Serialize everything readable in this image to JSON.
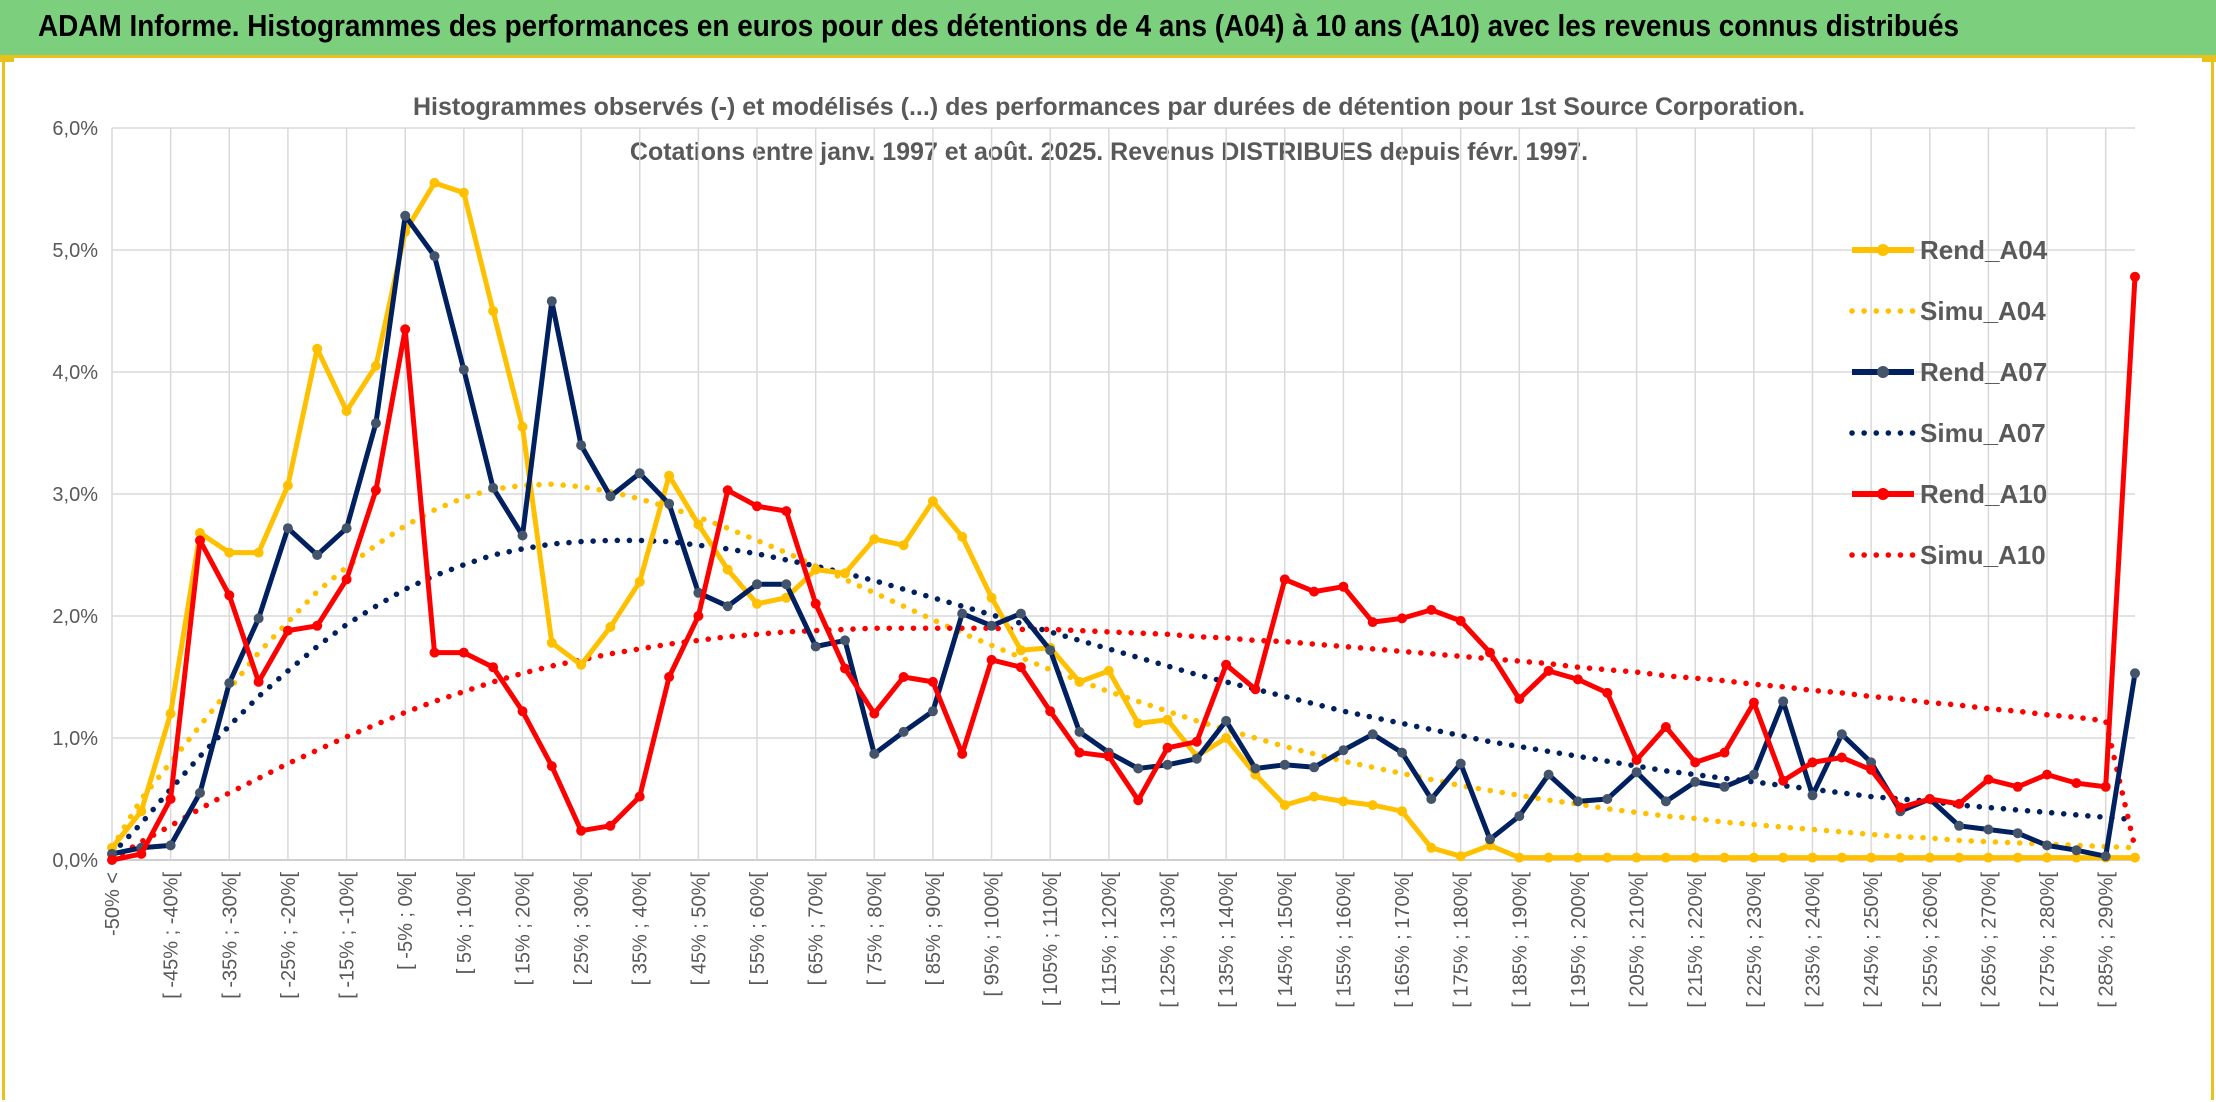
{
  "header": {
    "title": "ADAM Informe. Histogrammes des performances en euros pour des détentions de 4 ans (A04) à 10 ans (A10) avec les revenus connus distribués"
  },
  "chart_data": {
    "type": "line",
    "title": "Histogrammes observés (-) et modélisés (...) des performances par durées de détention pour 1st Source Corporation.",
    "subtitle": "Cotations entre janv. 1997 et août. 2025. Revenus DISTRIBUES depuis févr. 1997.",
    "ylim": [
      0,
      6
    ],
    "y_ticks": [
      "0,0%",
      "1,0%",
      "2,0%",
      "3,0%",
      "4,0%",
      "5,0%",
      "6,0%"
    ],
    "grid": true,
    "legend_position": "right",
    "x_tick_labels": [
      "-50% <",
      "[ -45% ; -40%[",
      "[ -35% ; -30%[",
      "[ -25% ; -20%[",
      "[ -15% ; -10%[",
      "[ -5% ; 0%[",
      "[ 5% ; 10%[",
      "[ 15% ; 20%[",
      "[ 25% ; 30%[",
      "[ 35% ; 40%[",
      "[ 45% ; 50%[",
      "[ 55% ; 60%[",
      "[ 65% ; 70%[",
      "[ 75% ; 80%[",
      "[ 85% ; 90%[",
      "[ 95% ; 100%[",
      "[ 105% ; 110%[",
      "[ 115% ; 120%[",
      "[ 125% ; 130%[",
      "[ 135% ; 140%[",
      "[ 145% ; 150%[",
      "[ 155% ; 160%[",
      "[ 165% ; 170%[",
      "[ 175% ; 180%[",
      "[ 185% ; 190%[",
      "[ 195% ; 200%[",
      "[ 205% ; 210%[",
      "[ 215% ; 220%[",
      "[ 225% ; 230%[",
      "[ 235% ; 240%[",
      "[ 245% ; 250%[",
      "[ 255% ; 260%[",
      "[ 265% ; 270%[",
      "[ 275% ; 280%[",
      "[ 285% ; 290%["
    ],
    "x_count": 70,
    "series": [
      {
        "name": "Rend_A04",
        "style": "solid",
        "color": "#ffc000",
        "values": [
          0.1,
          0.4,
          1.2,
          2.68,
          2.52,
          2.52,
          3.07,
          4.19,
          3.68,
          4.05,
          5.15,
          5.55,
          5.47,
          4.5,
          3.55,
          1.78,
          1.6,
          1.91,
          2.28,
          3.15,
          2.75,
          2.38,
          2.1,
          2.15,
          2.38,
          2.35,
          2.63,
          2.58,
          2.94,
          2.65,
          2.15,
          1.72,
          1.74,
          1.46,
          1.55,
          1.12,
          1.15,
          0.85,
          1.0,
          0.7,
          0.45,
          0.52,
          0.48,
          0.45,
          0.4,
          0.1,
          0.03,
          0.12,
          0.02,
          0.02,
          0.02,
          0.02,
          0.02,
          0.02,
          0.02,
          0.02,
          0.02,
          0.02,
          0.02,
          0.02,
          0.02,
          0.02,
          0.02,
          0.02,
          0.02,
          0.02,
          0.02,
          0.02,
          0.02,
          0.02
        ]
      },
      {
        "name": "Simu_A04",
        "style": "dotted",
        "color": "#ffc000",
        "values": [
          0.1,
          0.5,
          0.8,
          1.1,
          1.4,
          1.7,
          1.95,
          2.2,
          2.4,
          2.58,
          2.74,
          2.87,
          2.97,
          3.04,
          3.07,
          3.08,
          3.06,
          3.02,
          2.96,
          2.89,
          2.81,
          2.72,
          2.62,
          2.52,
          2.41,
          2.3,
          2.19,
          2.08,
          1.97,
          1.86,
          1.76,
          1.66,
          1.56,
          1.47,
          1.38,
          1.3,
          1.22,
          1.14,
          1.07,
          1.0,
          0.93,
          0.87,
          0.81,
          0.76,
          0.71,
          0.66,
          0.61,
          0.57,
          0.53,
          0.49,
          0.46,
          0.42,
          0.39,
          0.36,
          0.34,
          0.31,
          0.29,
          0.27,
          0.25,
          0.23,
          0.21,
          0.19,
          0.18,
          0.16,
          0.15,
          0.14,
          0.13,
          0.12,
          0.11,
          0.1
        ]
      },
      {
        "name": "Rend_A07",
        "style": "solid",
        "color": "#002060",
        "values": [
          0.05,
          0.1,
          0.12,
          0.55,
          1.45,
          1.98,
          2.72,
          2.5,
          2.72,
          3.58,
          5.28,
          4.95,
          4.02,
          3.05,
          2.66,
          4.58,
          3.4,
          2.98,
          3.17,
          2.92,
          2.19,
          2.08,
          2.26,
          2.26,
          1.75,
          1.8,
          0.87,
          1.05,
          1.22,
          2.02,
          1.92,
          2.02,
          1.72,
          1.05,
          0.88,
          0.75,
          0.78,
          0.83,
          1.14,
          0.75,
          0.78,
          0.76,
          0.9,
          1.03,
          0.88,
          0.5,
          0.79,
          0.17,
          0.36,
          0.7,
          0.48,
          0.5,
          0.72,
          0.48,
          0.64,
          0.6,
          0.7,
          1.3,
          0.53,
          1.03,
          0.8,
          0.4,
          0.5,
          0.28,
          0.25,
          0.22,
          0.12,
          0.08,
          0.03,
          1.53
        ]
      },
      {
        "name": "Simu_A07",
        "style": "dotted",
        "color": "#002060",
        "values": [
          0.05,
          0.3,
          0.58,
          0.85,
          1.1,
          1.34,
          1.55,
          1.75,
          1.93,
          2.08,
          2.22,
          2.33,
          2.42,
          2.5,
          2.55,
          2.59,
          2.61,
          2.62,
          2.62,
          2.61,
          2.58,
          2.55,
          2.51,
          2.46,
          2.41,
          2.35,
          2.29,
          2.22,
          2.15,
          2.08,
          2.01,
          1.94,
          1.87,
          1.8,
          1.73,
          1.66,
          1.59,
          1.52,
          1.46,
          1.4,
          1.34,
          1.28,
          1.22,
          1.17,
          1.12,
          1.07,
          1.02,
          0.97,
          0.93,
          0.89,
          0.85,
          0.81,
          0.77,
          0.73,
          0.7,
          0.67,
          0.64,
          0.61,
          0.58,
          0.55,
          0.52,
          0.5,
          0.48,
          0.45,
          0.43,
          0.41,
          0.39,
          0.37,
          0.35,
          0.33
        ]
      },
      {
        "name": "Rend_A10",
        "style": "solid",
        "color": "#ff0000",
        "values": [
          0.0,
          0.05,
          0.5,
          2.62,
          2.17,
          1.46,
          1.88,
          1.92,
          2.3,
          3.03,
          4.35,
          1.7,
          1.7,
          1.58,
          1.22,
          0.77,
          0.24,
          0.28,
          0.52,
          1.5,
          2.0,
          3.03,
          2.9,
          2.86,
          2.1,
          1.57,
          1.2,
          1.5,
          1.46,
          0.87,
          1.64,
          1.58,
          1.22,
          0.88,
          0.85,
          0.49,
          0.92,
          0.97,
          1.6,
          1.4,
          2.3,
          2.2,
          2.24,
          1.95,
          1.98,
          2.05,
          1.96,
          1.7,
          1.32,
          1.55,
          1.48,
          1.37,
          0.82,
          1.09,
          0.8,
          0.88,
          1.29,
          0.65,
          0.8,
          0.84,
          0.74,
          0.43,
          0.5,
          0.46,
          0.66,
          0.6,
          0.7,
          0.63,
          0.6,
          4.78
        ]
      },
      {
        "name": "Simu_A10",
        "style": "dotted",
        "color": "#ff0000",
        "values": [
          0.0,
          0.15,
          0.28,
          0.42,
          0.55,
          0.67,
          0.79,
          0.9,
          1.01,
          1.11,
          1.21,
          1.3,
          1.38,
          1.46,
          1.53,
          1.59,
          1.64,
          1.69,
          1.73,
          1.77,
          1.8,
          1.83,
          1.85,
          1.87,
          1.88,
          1.89,
          1.9,
          1.9,
          1.9,
          1.9,
          1.9,
          1.89,
          1.89,
          1.88,
          1.87,
          1.86,
          1.85,
          1.83,
          1.82,
          1.8,
          1.79,
          1.77,
          1.75,
          1.73,
          1.71,
          1.69,
          1.67,
          1.65,
          1.63,
          1.61,
          1.58,
          1.56,
          1.54,
          1.51,
          1.49,
          1.47,
          1.44,
          1.42,
          1.39,
          1.37,
          1.34,
          1.32,
          1.29,
          1.27,
          1.24,
          1.22,
          1.19,
          1.17,
          1.14,
          0.1
        ]
      }
    ]
  }
}
